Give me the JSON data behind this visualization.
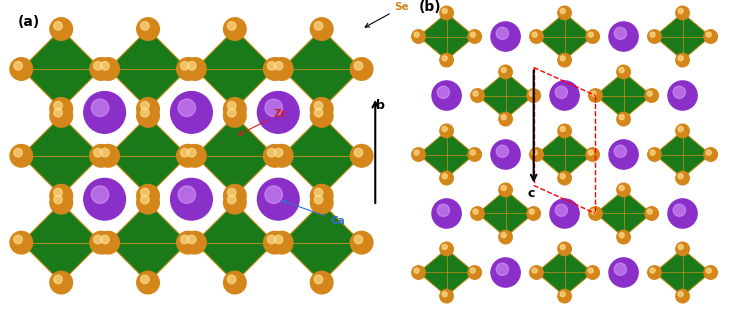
{
  "bg_color": "#ffffff",
  "ca_color": "#8B2FC9",
  "se_color": "#D4861A",
  "zr_color": "#1a7a1a",
  "bond_color": "#C8901A",
  "label_se_color": "#D4861A",
  "label_zr_color": "#cc2020",
  "label_ca_color": "#3070cc",
  "panel_a_label": "(a)",
  "panel_b_label": "(b)",
  "se_label": "Se",
  "zr_label": "Zr",
  "ca_label": "Ca",
  "b_label": "b",
  "c_label": "c",
  "figsize": [
    7.38,
    3.09
  ],
  "dpi": 100
}
